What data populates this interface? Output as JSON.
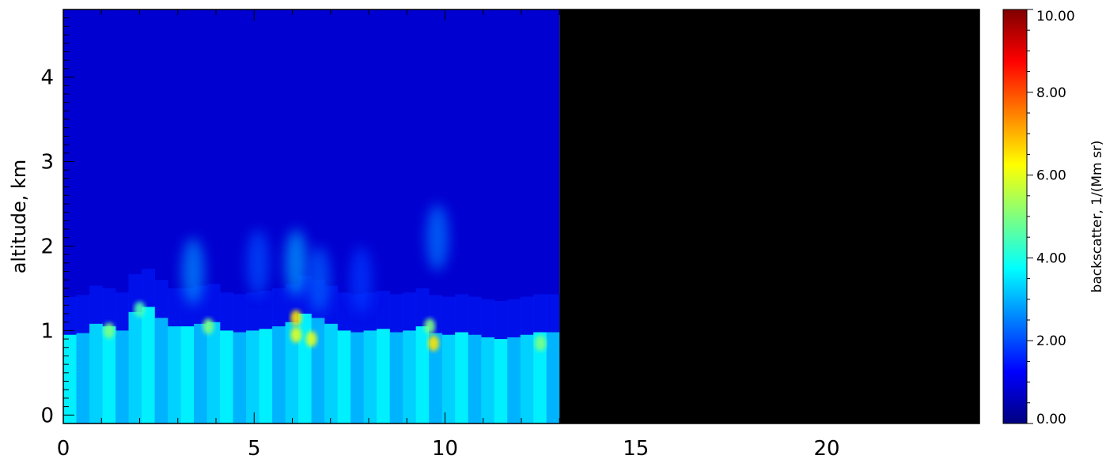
{
  "chart_data": {
    "type": "heatmap",
    "title": "",
    "xlabel": "",
    "ylabel": "altitude, km",
    "xlim": [
      0,
      24
    ],
    "ylim": [
      -0.1,
      4.8
    ],
    "x_ticks": [
      0,
      5,
      10,
      15,
      20
    ],
    "x_tick_labels": [
      "0",
      "5",
      "10",
      "15",
      "20"
    ],
    "y_ticks": [
      0,
      1,
      2,
      3,
      4
    ],
    "y_tick_labels": [
      "0",
      "1",
      "2",
      "3",
      "4"
    ],
    "data_end_x": 13.0,
    "no_data_color": "#000000",
    "colorbar": {
      "label": "backscatter, 1/(Mm sr)",
      "range": [
        0,
        10
      ],
      "ticks": [
        0,
        2,
        4,
        6,
        8,
        10
      ],
      "tick_labels": [
        "0.00",
        "2.00",
        "4.00",
        "6.00",
        "8.00",
        "10.00"
      ],
      "colormap": "jet"
    },
    "boundary_layer_top_km": [
      0.95,
      0.97,
      1.08,
      1.05,
      1.0,
      1.22,
      1.28,
      1.15,
      1.05,
      1.05,
      1.08,
      1.1,
      1.0,
      0.98,
      1.0,
      1.02,
      1.05,
      1.1,
      1.2,
      1.15,
      1.08,
      1.0,
      0.98,
      1.0,
      1.02,
      0.98,
      1.0,
      1.05,
      0.97,
      0.95,
      0.98,
      0.95,
      0.92,
      0.9,
      0.92,
      0.95,
      0.98,
      0.98
    ],
    "boundary_layer_value": 3.2,
    "upper_value": 0.8,
    "hotspots": [
      {
        "x": 1.2,
        "y": 1.0,
        "value": 5.0
      },
      {
        "x": 2.0,
        "y": 1.25,
        "value": 4.5
      },
      {
        "x": 3.8,
        "y": 1.05,
        "value": 5.0
      },
      {
        "x": 6.1,
        "y": 1.15,
        "value": 6.5
      },
      {
        "x": 6.1,
        "y": 0.95,
        "value": 6.0
      },
      {
        "x": 6.5,
        "y": 0.9,
        "value": 6.0
      },
      {
        "x": 9.7,
        "y": 0.85,
        "value": 6.5
      },
      {
        "x": 9.6,
        "y": 1.05,
        "value": 5.0
      },
      {
        "x": 12.5,
        "y": 0.85,
        "value": 5.0
      }
    ],
    "plumes": [
      {
        "x": 3.4,
        "y": 1.7,
        "value": 2.6
      },
      {
        "x": 5.1,
        "y": 1.8,
        "value": 2.0
      },
      {
        "x": 6.1,
        "y": 1.8,
        "value": 2.8
      },
      {
        "x": 6.7,
        "y": 1.6,
        "value": 2.2
      },
      {
        "x": 9.8,
        "y": 2.1,
        "value": 2.4
      },
      {
        "x": 7.8,
        "y": 1.6,
        "value": 1.8
      }
    ]
  }
}
